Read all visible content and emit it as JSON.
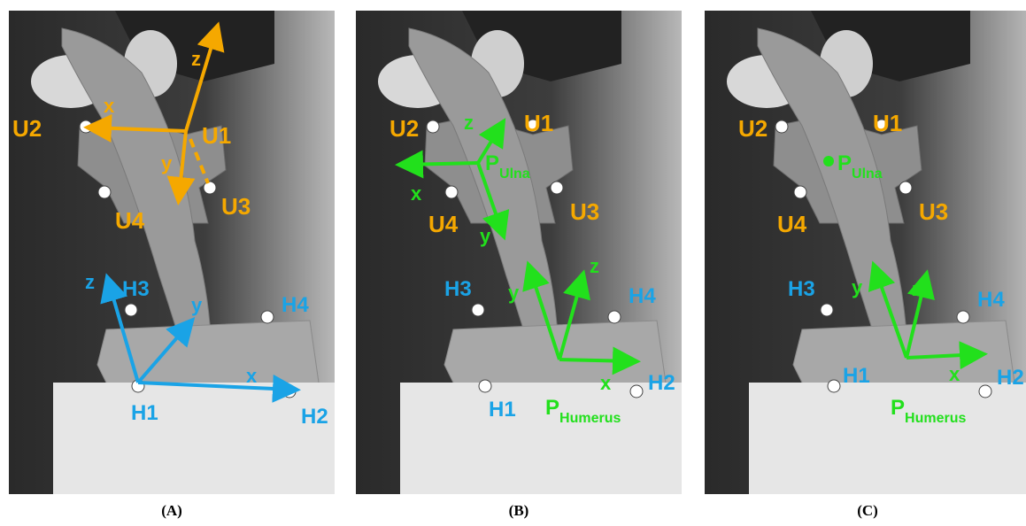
{
  "colors": {
    "ulna_frame": "#f5a800",
    "humerus_frame": "#1aa3e6",
    "anatomical_frame": "#22e01c",
    "photo_bg": "#3a3a3a"
  },
  "panels": [
    {
      "caption": "(A)",
      "ulna_labels": {
        "u1": "U1",
        "u2": "U2",
        "u3": "U3",
        "u4": "U4"
      },
      "humerus_labels": {
        "h1": "H1",
        "h2": "H2",
        "h3": "H3",
        "h4": "H4"
      },
      "ulna_axes": {
        "x": "x",
        "y": "y",
        "z": "z"
      },
      "humerus_axes": {
        "x": "x",
        "y": "y",
        "z": "z"
      }
    },
    {
      "caption": "(B)",
      "ulna_labels": {
        "u1": "U1",
        "u2": "U2",
        "u3": "U3",
        "u4": "U4"
      },
      "humerus_labels": {
        "h1": "H1",
        "h2": "H2",
        "h3": "H3",
        "h4": "H4"
      },
      "ulna_axes": {
        "x": "x",
        "y": "y",
        "z": "z"
      },
      "humerus_axes": {
        "x": "x",
        "y": "y",
        "z": "z"
      },
      "origin_ulna": {
        "main": "P",
        "sub": "Ulna"
      },
      "origin_humerus": {
        "main": "P",
        "sub": "Humerus"
      }
    },
    {
      "caption": "(C)",
      "ulna_labels": {
        "u1": "U1",
        "u2": "U2",
        "u3": "U3",
        "u4": "U4"
      },
      "humerus_labels": {
        "h1": "H1",
        "h2": "H2",
        "h3": "H3",
        "h4": "H4"
      },
      "humerus_axes": {
        "x": "x",
        "y": "y",
        "z": "z"
      },
      "origin_ulna": {
        "main": "P",
        "sub": "Ulna"
      },
      "origin_humerus": {
        "main": "P",
        "sub": "Humerus"
      }
    }
  ]
}
